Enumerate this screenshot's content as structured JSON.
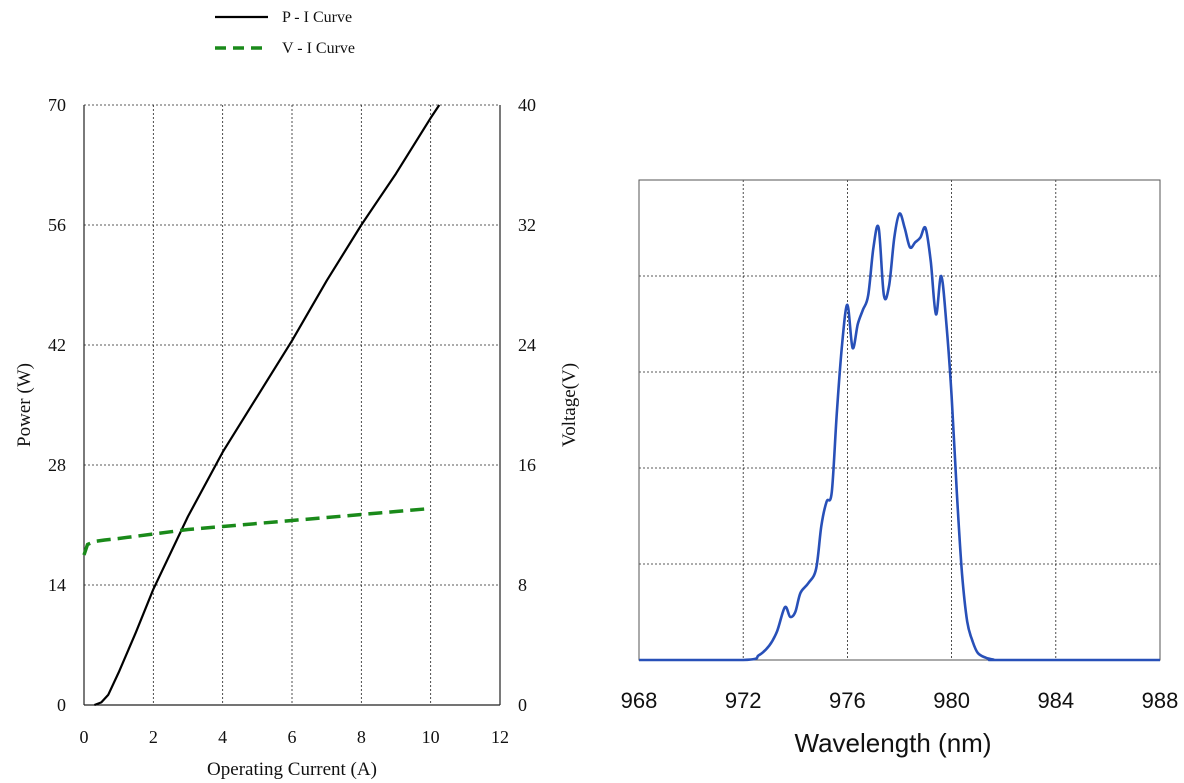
{
  "chart_data": [
    {
      "type": "line",
      "xlabel": "Operating Current (A)",
      "ylabel": "Power (W)",
      "y2label": "Voltage(V)",
      "xlim": [
        0,
        12
      ],
      "ylim": [
        0,
        70
      ],
      "y2lim": [
        0,
        40
      ],
      "xticks": [
        0,
        2,
        4,
        6,
        8,
        10,
        12
      ],
      "yticks": [
        0,
        14,
        28,
        42,
        56,
        70
      ],
      "y2ticks": [
        0,
        8,
        16,
        24,
        32,
        40
      ],
      "grid": true,
      "legend_position": "top-left, above plot",
      "series": [
        {
          "name": "P - I Curve",
          "axis": "left",
          "color": "#000000",
          "style": "solid",
          "x": [
            0.3,
            0.5,
            0.7,
            1.0,
            1.5,
            2.0,
            3.0,
            4.0,
            5.0,
            6.0,
            7.0,
            8.0,
            9.0,
            10.0,
            10.25
          ],
          "y": [
            0,
            0.3,
            1.2,
            3.8,
            8.5,
            13.5,
            22.0,
            29.5,
            36.0,
            42.5,
            49.5,
            56.0,
            62.0,
            68.5,
            70.0
          ]
        },
        {
          "name": "V - I Curve",
          "axis": "right",
          "color": "#1a8a1a",
          "style": "dashed",
          "x": [
            0.0,
            0.1,
            0.3,
            0.6,
            1.0,
            2.0,
            3.0,
            4.0,
            5.0,
            6.0,
            7.0,
            8.0,
            9.0,
            10.0
          ],
          "y": [
            10.0,
            10.7,
            10.9,
            11.0,
            11.1,
            11.4,
            11.7,
            11.9,
            12.1,
            12.3,
            12.5,
            12.7,
            12.9,
            13.1
          ]
        }
      ]
    },
    {
      "type": "line",
      "xlabel": "Wavelength (nm)",
      "ylabel": "",
      "xlim": [
        968,
        988
      ],
      "ylim": [
        0,
        1
      ],
      "xticks": [
        968,
        972,
        976,
        980,
        984,
        988
      ],
      "grid": true,
      "series": [
        {
          "name": "",
          "color": "#2850b8",
          "x": [
            968,
            972.0,
            972.6,
            973.0,
            973.3,
            973.6,
            973.8,
            974.0,
            974.2,
            974.5,
            974.8,
            975.0,
            975.2,
            975.4,
            975.6,
            975.8,
            976.0,
            976.2,
            976.4,
            976.6,
            976.8,
            977.0,
            977.2,
            977.4,
            977.6,
            977.8,
            978.0,
            978.2,
            978.4,
            978.6,
            978.8,
            979.0,
            979.2,
            979.4,
            979.6,
            979.8,
            980.0,
            980.2,
            980.4,
            980.6,
            980.8,
            981.0,
            981.3,
            981.6,
            982,
            988
          ],
          "y": [
            0,
            0,
            0.01,
            0.03,
            0.06,
            0.11,
            0.09,
            0.1,
            0.14,
            0.16,
            0.19,
            0.28,
            0.33,
            0.35,
            0.52,
            0.66,
            0.74,
            0.65,
            0.7,
            0.73,
            0.76,
            0.86,
            0.9,
            0.76,
            0.78,
            0.88,
            0.93,
            0.9,
            0.86,
            0.87,
            0.88,
            0.9,
            0.83,
            0.72,
            0.8,
            0.7,
            0.55,
            0.35,
            0.18,
            0.08,
            0.04,
            0.015,
            0.005,
            0.001,
            0,
            0
          ]
        }
      ]
    }
  ]
}
